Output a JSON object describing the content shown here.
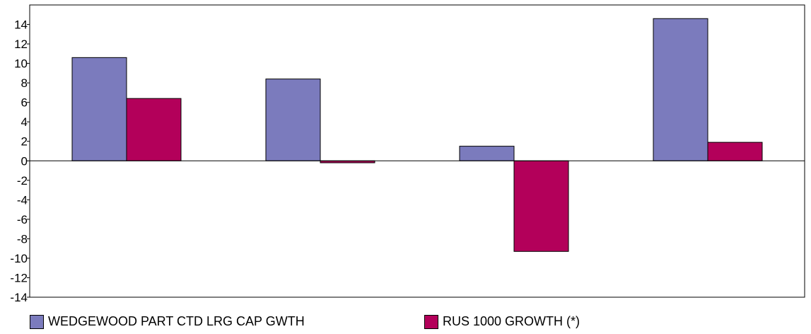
{
  "chart_data": {
    "type": "bar",
    "title": "",
    "xlabel": "",
    "ylabel": "",
    "categories": [
      "",
      "",
      "",
      ""
    ],
    "ylim": [
      -14,
      16
    ],
    "yticks": [
      14,
      12,
      10,
      8,
      6,
      4,
      2,
      0,
      -2,
      -4,
      -6,
      -8,
      -10,
      -12,
      -14
    ],
    "grid": false,
    "legend_position": "bottom",
    "series": [
      {
        "name": "WEDGEWOOD PART CTD LRG CAP GWTH",
        "color": "#7b7bbd",
        "values": [
          10.6,
          8.4,
          1.5,
          14.6
        ]
      },
      {
        "name": "RUS 1000 GROWTH (*)",
        "color": "#b3005a",
        "values": [
          6.4,
          -0.2,
          -9.3,
          1.9
        ]
      }
    ]
  }
}
